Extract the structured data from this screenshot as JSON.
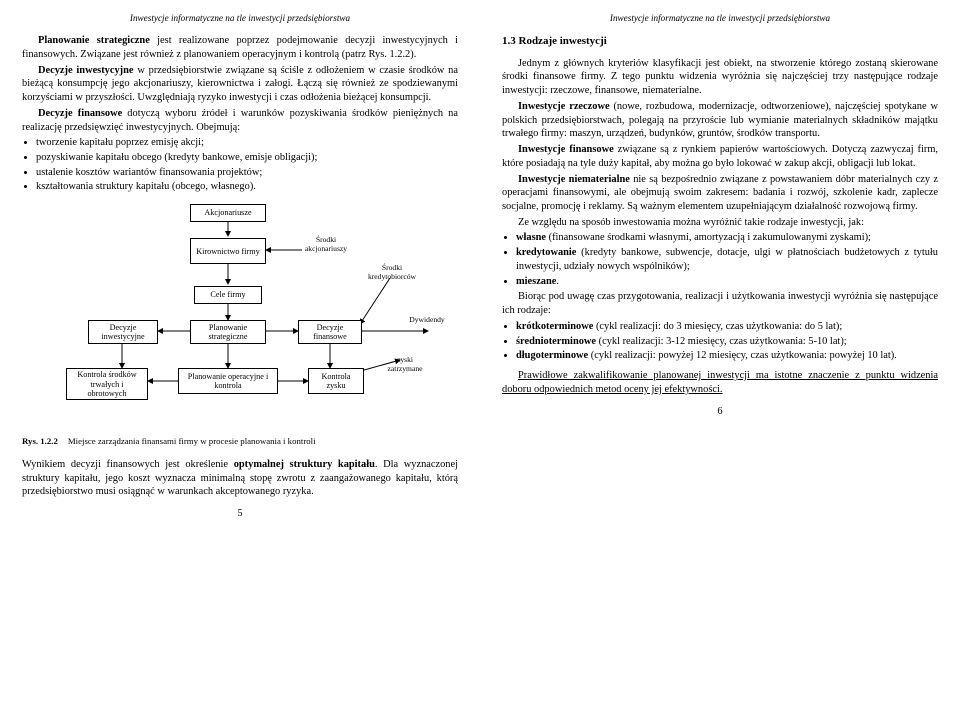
{
  "header": "Inwestycje informatyczne na tle inwestycji przedsiębiorstwa",
  "left": {
    "p1": "Planowanie strategiczne jest realizowane poprzez podejmowanie decyzji inwestycyjnych i finansowych. Związane jest również z planowaniem operacyjnym i kontrolą (patrz Rys. 1.2.2).",
    "p2a": "Decyzje inwestycyjne",
    "p2b": " w przedsiębiorstwie związane są ściśle z odłożeniem w czasie środków na bieżącą konsumpcję jego akcjonariuszy, kierownictwa i załogi. Łączą się również ze spodziewanymi korzyściami w przyszłości. Uwzględniają ryzyko inwestycji i czas odłożenia bieżącej konsumpcji.",
    "p3a": "Decyzje finansowe",
    "p3b": " dotyczą wyboru źródeł i warunków pozyskiwania środków pieniężnych na realizację przedsięwzięć inwestycyjnych. Obejmują:",
    "bullets": [
      "tworzenie kapitału poprzez emisję akcji;",
      "pozyskiwanie kapitału obcego (kredyty bankowe, emisje obligacji);",
      "ustalenie kosztów wariantów finansowania projektów;",
      "kształtowania struktury kapitału (obcego, własnego)."
    ],
    "fig": {
      "num": "Rys. 1.2.2",
      "caption": "Miejsce zarządzania finansami firmy w procesie planowania i kontroli",
      "nodes": {
        "akcjonariusze": "Akcjonariusze",
        "kierownictwo": "Kirownictwo firmy",
        "cele": "Cele firmy",
        "decInw": "Decyzje inwestycyjne",
        "planStrat": "Planowanie strategiczne",
        "decFin": "Decyzje finansowe",
        "kontrSrod": "Kontrola środków trwałych i obrotowych",
        "planOper": "Planowanie operacyjne i kontrola",
        "kontrZysku": "Kontrola zysku"
      },
      "labels": {
        "srodkiAkc": "Środki akcjonariuszy",
        "srodkiKred": "Środki kredytobiorców",
        "dywidendy": "Dywidendy",
        "zyski": "zyski zatrzymane"
      }
    },
    "p4a": "Wynikiem decyzji finansowych jest określenie ",
    "p4b": "optymalnej struktury kapitału",
    "p4c": ". Dla wyznaczonej struktury kapitału, jego koszt wyznacza minimalną stopę zwrotu z zaangażowanego kapitału, którą przedsiębiorstwo musi osiągnąć w warunkach akceptowanego ryzyka.",
    "pagenum": "5"
  },
  "right": {
    "section": "1.3  Rodzaje inwestycji",
    "p1": "Jednym z głównych kryteriów klasyfikacji jest obiekt, na stworzenie którego zostaną skierowane środki finansowe firmy. Z tego punktu widzenia wyróżnia się najczęściej trzy następujące rodzaje inwestycji: rzeczowe, finansowe, niematerialne.",
    "p2a": "Inwestycje rzeczowe",
    "p2b": " (nowe, rozbudowa, modernizacje, odtworzeniowe), najczęściej spotykane w polskich przedsiębiorstwach, polegają na przyroście lub wymianie materialnych składników majątku trwałego firmy: maszyn, urządzeń, budynków, gruntów, środków transportu.",
    "p3a": "Inwestycje finansowe",
    "p3b": " związane są z rynkiem papierów wartościowych. Dotyczą zazwyczaj firm, które posiadają na tyle duży kapitał, aby można go było lokować w zakup akcji, obligacji lub lokat.",
    "p4a": "Inwestycje niematerialne",
    "p4b": " nie są bezpośrednio związane z powstawaniem dóbr materialnych czy z operacjami finansowymi, ale obejmują swoim zakresem: badania i rozwój, szkolenie kadr, zaplecze socjalne, promocję i reklamy. Są ważnym elementem uzupełniającym działalność rozwojową firmy.",
    "p5": "Ze względu na sposób inwestowania można wyróżnić takie rodzaje inwestycji, jak:",
    "bullets1": [
      {
        "b": "własne",
        "t": " (finansowane środkami własnymi, amortyzacją i zakumulowanymi zyskami);"
      },
      {
        "b": "kredytowanie",
        "t": " (kredyty bankowe, subwencje, dotacje, ulgi w płatnościach budżetowych z tytułu inwestycji, udziały nowych wspólników);"
      },
      {
        "b": "mieszane",
        "t": "."
      }
    ],
    "p6": "Biorąc pod uwagę czas przygotowania, realizacji i użytkowania inwestycji wyróżnia się następujące ich rodzaje:",
    "bullets2": [
      {
        "b": "krótkoterminowe",
        "t": " (cykl realizacji: do 3 miesięcy, czas użytkowania: do 5 lat);"
      },
      {
        "b": "średnioterminowe",
        "t": " (cykl realizacji: 3-12 miesięcy, czas użytkowania: 5-10 lat);"
      },
      {
        "b": "długoterminowe",
        "t": " (cykl realizacji: powyżej 12 miesięcy, czas użytkowania: powyżej 10 lat)."
      }
    ],
    "p7": "Prawidłowe zakwalifikowanie planowanej inwestycji ma istotne znaczenie z punktu widzenia doboru odpowiednich metod oceny jej efektywności.",
    "pagenum": "6"
  }
}
